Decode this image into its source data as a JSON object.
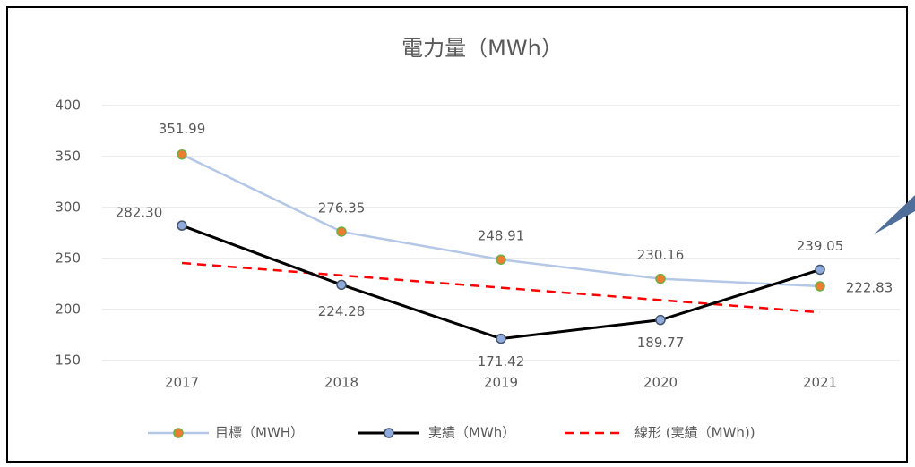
{
  "chart_data": {
    "type": "line",
    "title": "電力量（MWh）",
    "categories": [
      "2017",
      "2018",
      "2019",
      "2020",
      "2021"
    ],
    "series": [
      {
        "name": "目標（MWH）",
        "color": "#b4c7e7",
        "marker_fill": "#ed7d31",
        "marker_edge": "#70ad47",
        "values": [
          351.99,
          276.35,
          248.91,
          230.16,
          222.83
        ],
        "value_labels": [
          "351.99",
          "276.35",
          "248.91",
          "230.16",
          "222.83"
        ]
      },
      {
        "name": "実績（MWh）",
        "color": "#000000",
        "marker_fill": "#8faadc",
        "marker_edge": "#44546a",
        "values": [
          282.3,
          224.28,
          171.42,
          189.77,
          239.05
        ],
        "value_labels": [
          "282.30",
          "224.28",
          "171.42",
          "189.77",
          "239.05"
        ]
      },
      {
        "name": "線形 (実績（MWh))",
        "color": "#ff0000",
        "dashed": true,
        "values": [
          245.6,
          233.5,
          221.4,
          209.3,
          197.2
        ]
      }
    ],
    "ylim": [
      150,
      400
    ],
    "yticks": [
      150,
      200,
      250,
      300,
      350,
      400
    ],
    "grid": true
  }
}
